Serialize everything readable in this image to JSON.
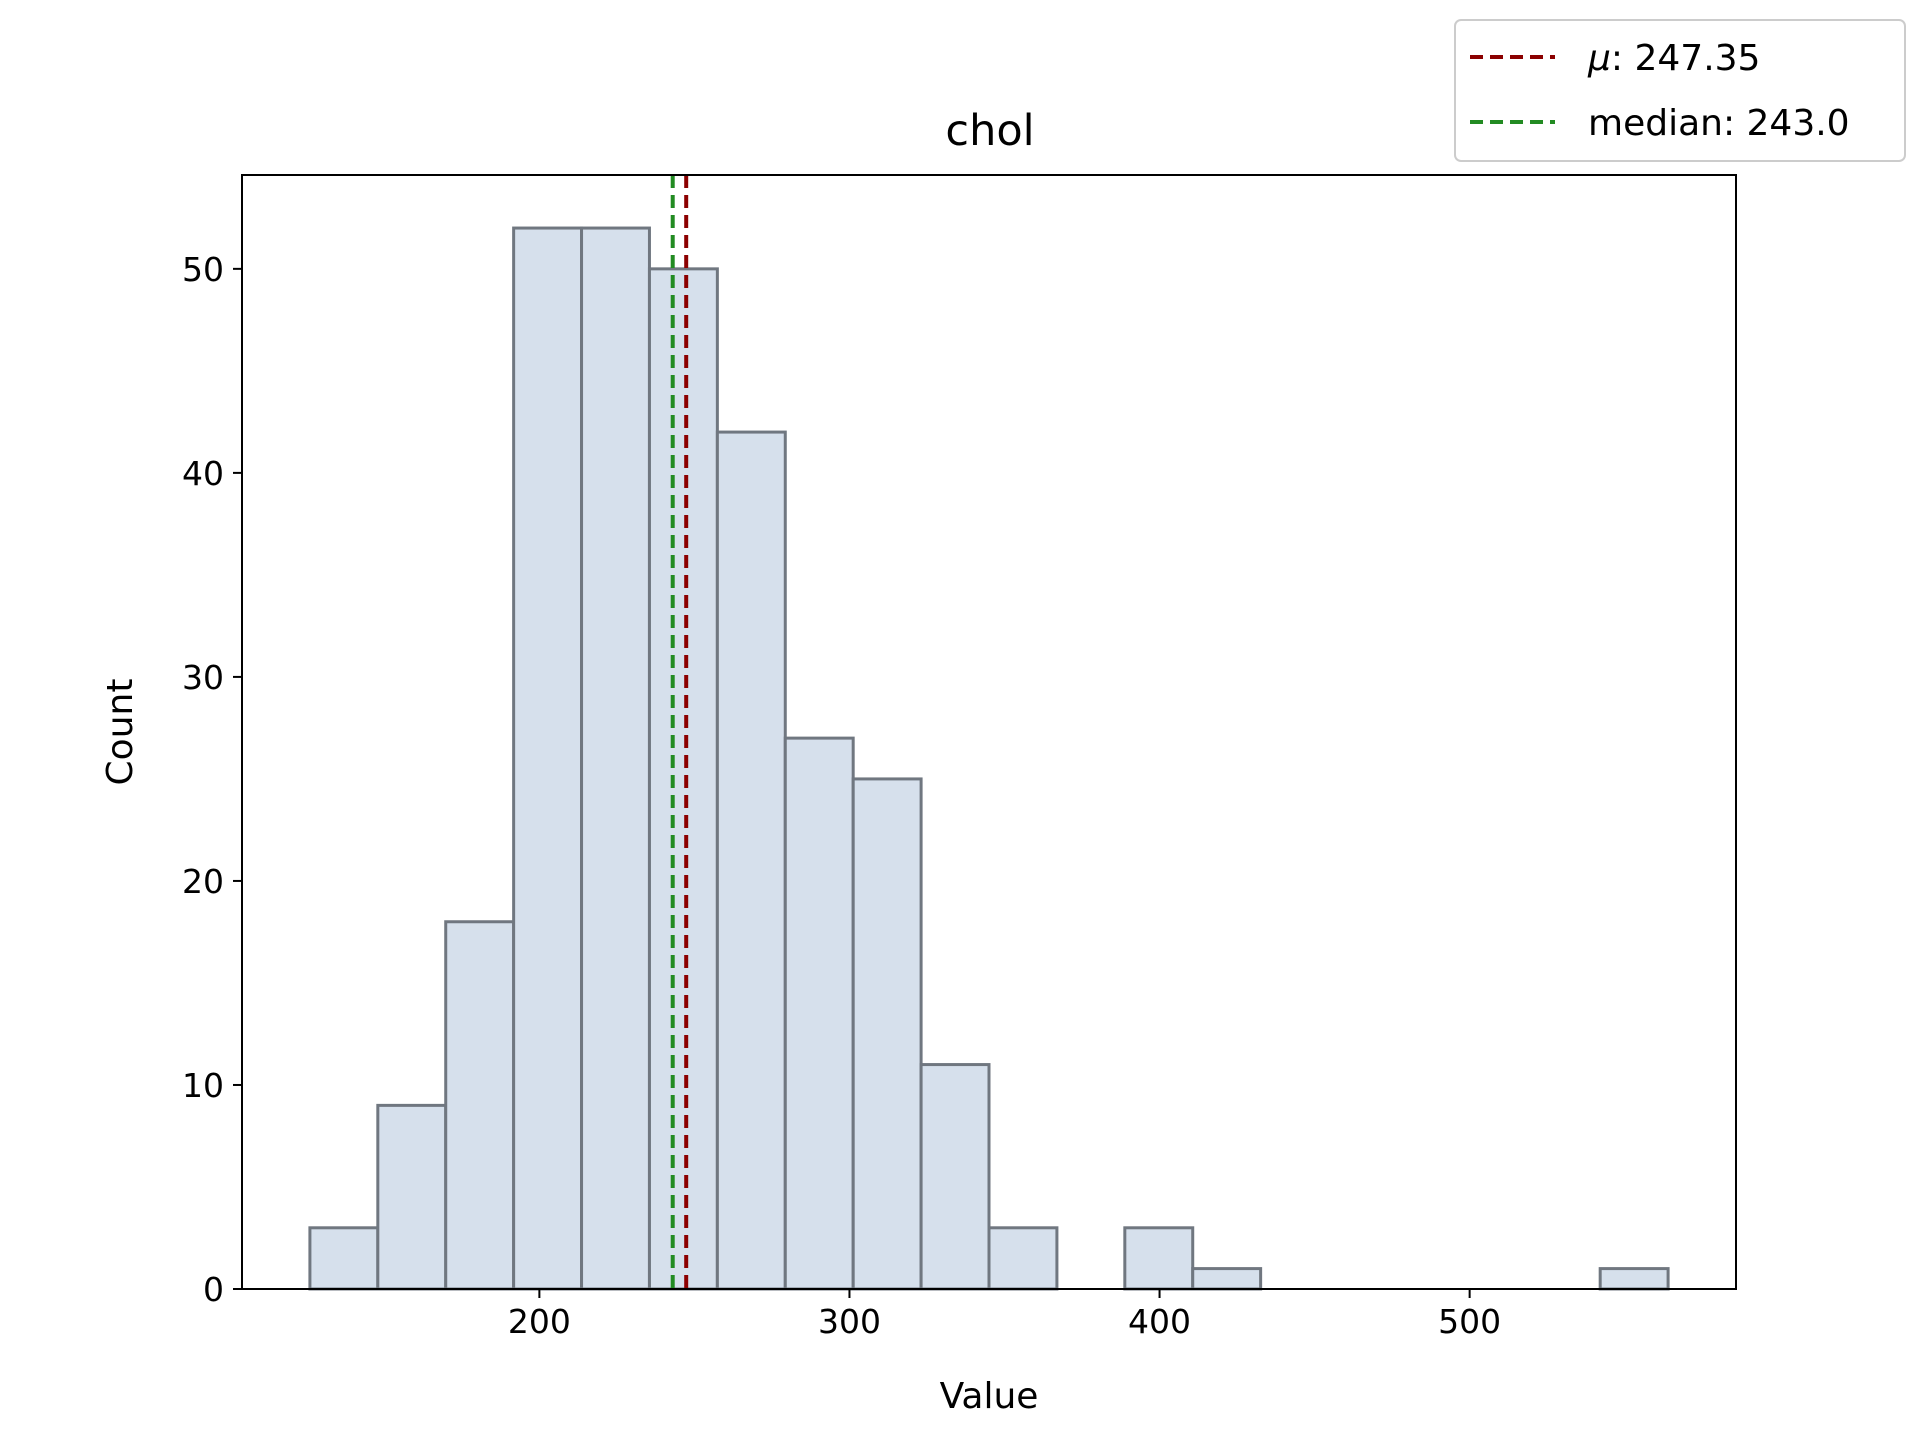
{
  "chart_data": {
    "type": "bar",
    "title": "chol",
    "xlabel": "Value",
    "ylabel": "Count",
    "bin_edges": [
      126,
      147.9,
      169.8,
      191.7,
      213.6,
      235.5,
      257.4,
      279.3,
      301.2,
      323.1,
      345.0,
      366.9,
      388.8,
      410.7,
      432.6,
      454.5,
      476.4,
      498.3,
      520.2,
      542.1,
      564
    ],
    "values": [
      3,
      9,
      18,
      52,
      52,
      50,
      42,
      27,
      25,
      11,
      3,
      0,
      3,
      1,
      0,
      0,
      0,
      0,
      0,
      1
    ],
    "xlim": [
      104.1,
      585.9
    ],
    "ylim": [
      0,
      54.6
    ],
    "xticks": [
      200,
      300,
      400,
      500
    ],
    "yticks": [
      0,
      10,
      20,
      30,
      40,
      50
    ],
    "bar_color": "#d6e0ec",
    "bar_edge_color": "#707780",
    "grid": false,
    "legend_placement": "top-right, outside axes",
    "reference_lines": [
      {
        "name": "mu",
        "label_prefix": "μ",
        "label_rest": ": 247.35",
        "value": 247.35,
        "color": "#8b0000",
        "style": "dashed"
      },
      {
        "name": "median",
        "label_prefix": "",
        "label_rest": "median: 243.0",
        "value": 243.0,
        "color": "#228b22",
        "style": "dashed"
      }
    ]
  }
}
